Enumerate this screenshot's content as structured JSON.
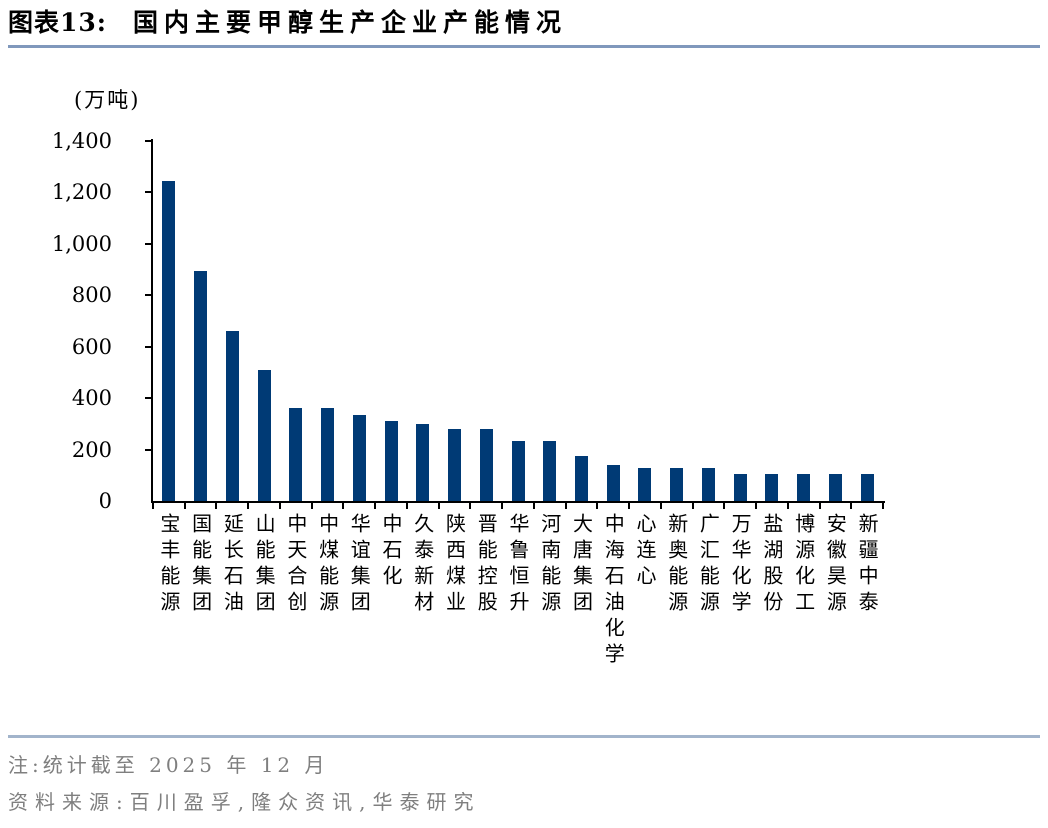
{
  "header": {
    "figure_label": "图表13:",
    "title": "国内主要甲醇生产企业产能情况"
  },
  "chart_data": {
    "type": "bar",
    "title": "国内主要甲醇生产企业产能情况",
    "unit_label": "(万吨)",
    "categories": [
      "宝丰能源",
      "国能集团",
      "延长石油",
      "山能集团",
      "中天合创",
      "中煤能源",
      "华谊集团",
      "中石化",
      "久泰新材",
      "陕西煤业",
      "晋能控股",
      "华鲁恒升",
      "河南能源",
      "大唐集团",
      "中海石油化学",
      "心连心",
      "新奥能源",
      "广汇能源",
      "万华化学",
      "盐湖股份",
      "博源化工",
      "安徽昊源",
      "新疆中泰"
    ],
    "values": [
      1245,
      895,
      660,
      510,
      360,
      360,
      335,
      310,
      300,
      280,
      280,
      235,
      235,
      175,
      140,
      130,
      130,
      130,
      105,
      105,
      105,
      105,
      105
    ],
    "xlabel": "",
    "ylabel": "",
    "ylim": [
      0,
      1400
    ],
    "ytick_interval": 200,
    "ytick_labels": [
      "0",
      "200",
      "400",
      "600",
      "800",
      "1,000",
      "1,200",
      "1,400"
    ],
    "bar_color": "#003A75",
    "grid": false,
    "legend_position": "none"
  },
  "footer": {
    "note": "注:统计截至 2025 年 12 月",
    "source": "资料来源:百川盈孚,隆众资讯,华泰研究"
  },
  "colors": {
    "bar": "#003A75",
    "title_rule": "#8098BC",
    "footer_rule": "#A2B4CB",
    "note_text": "#7F7F7F"
  }
}
